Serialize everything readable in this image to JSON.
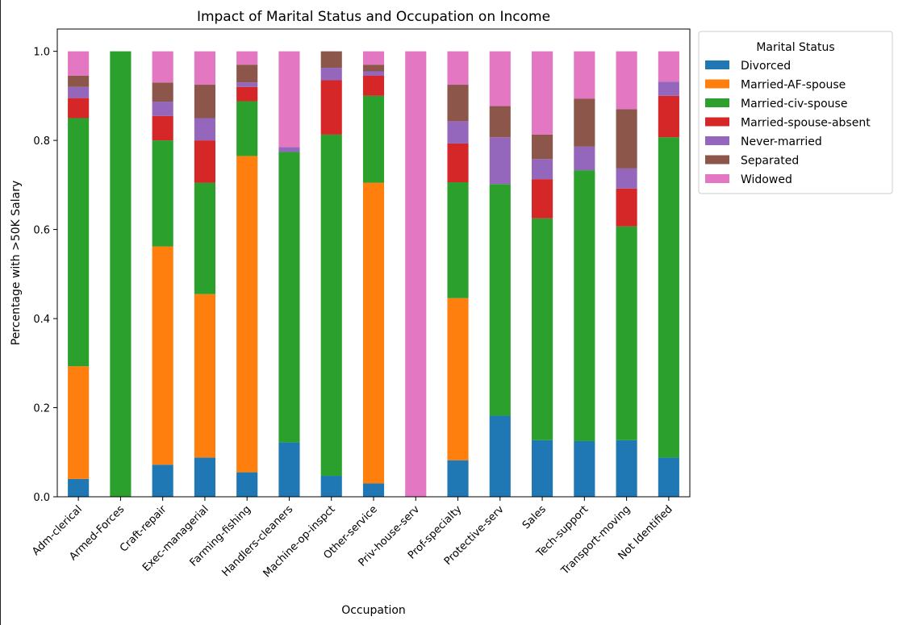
{
  "chart_data": {
    "type": "bar",
    "stacked": true,
    "title": "Impact of Marital Status and Occupation on Income",
    "xlabel": "Occupation",
    "ylabel": "Percentage with >50K Salary",
    "ylim": [
      0,
      1.05
    ],
    "yticks": [
      "0.0",
      "0.2",
      "0.4",
      "0.6",
      "0.8",
      "1.0"
    ],
    "grid": false,
    "legend": {
      "title": "Marital Status",
      "placement": "top-right-outside"
    },
    "categories": [
      "Adm-clerical",
      "Armed-Forces",
      "Craft-repair",
      "Exec-managerial",
      "Farming-fishing",
      "Handlers-cleaners",
      "Machine-op-inspct",
      "Other-service",
      "Priv-house-serv",
      "Prof-specialty",
      "Protective-serv",
      "Sales",
      "Tech-support",
      "Transport-moving",
      "Not Identified"
    ],
    "series": [
      {
        "name": "Divorced",
        "color": "#1f77b4",
        "values": [
          0.04,
          0.0,
          0.072,
          0.088,
          0.055,
          0.122,
          0.047,
          0.03,
          0.0,
          0.082,
          0.182,
          0.127,
          0.125,
          0.127,
          0.088
        ]
      },
      {
        "name": "Married-AF-spouse",
        "color": "#ff7f0e",
        "values": [
          0.253,
          0.0,
          0.49,
          0.367,
          0.71,
          0.0,
          0.0,
          0.675,
          0.0,
          0.364,
          0.0,
          0.0,
          0.0,
          0.0,
          0.0
        ]
      },
      {
        "name": "Married-civ-spouse",
        "color": "#2ca02c",
        "values": [
          0.557,
          1.0,
          0.238,
          0.25,
          0.123,
          0.652,
          0.766,
          0.195,
          0.0,
          0.26,
          0.52,
          0.498,
          0.608,
          0.48,
          0.719
        ]
      },
      {
        "name": "Married-spouse-absent",
        "color": "#d62728",
        "values": [
          0.045,
          0.0,
          0.055,
          0.095,
          0.032,
          0.0,
          0.122,
          0.045,
          0.0,
          0.087,
          0.0,
          0.088,
          0.0,
          0.085,
          0.093
        ]
      },
      {
        "name": "Never-married",
        "color": "#9467bd",
        "values": [
          0.025,
          0.0,
          0.032,
          0.05,
          0.01,
          0.011,
          0.028,
          0.01,
          0.0,
          0.05,
          0.105,
          0.045,
          0.053,
          0.045,
          0.032
        ]
      },
      {
        "name": "Separated",
        "color": "#8c564b",
        "values": [
          0.025,
          0.0,
          0.043,
          0.075,
          0.04,
          0.0,
          0.037,
          0.015,
          0.0,
          0.082,
          0.07,
          0.055,
          0.108,
          0.133,
          0.0
        ]
      },
      {
        "name": "Widowed",
        "color": "#e377c2",
        "values": [
          0.055,
          0.0,
          0.07,
          0.075,
          0.03,
          0.215,
          0.0,
          0.03,
          1.0,
          0.075,
          0.123,
          0.187,
          0.106,
          0.13,
          0.068
        ]
      }
    ]
  }
}
